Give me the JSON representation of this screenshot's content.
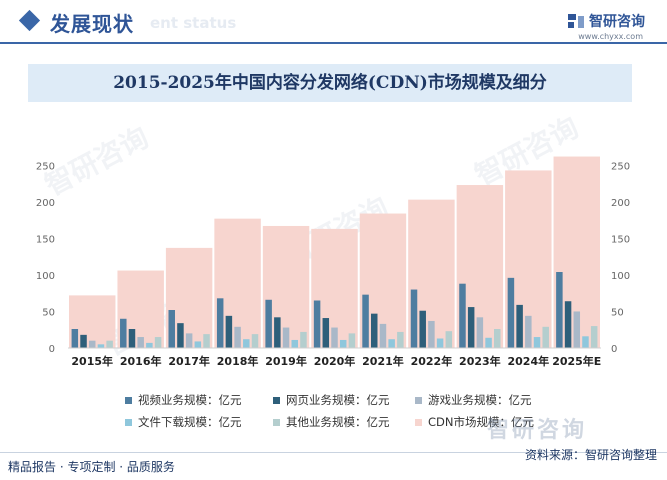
{
  "header": {
    "section_title": "发展现状",
    "section_subtitle": "ent status",
    "brand_name": "智研咨询",
    "brand_url": "www.chyxx.com"
  },
  "watermark": {
    "text": "智研咨询",
    "corner_text": "智研咨询"
  },
  "footer": {
    "left": "精品报告 · 专项定制 · 品质服务",
    "right": "资料来源：智研咨询整理"
  },
  "chart_data": {
    "type": "bar",
    "title": "2015-2025年中国内容分发网络(CDN)市场规模及细分",
    "categories": [
      "2015年",
      "2016年",
      "2017年",
      "2018年",
      "2019年",
      "2020年",
      "2021年",
      "2022年",
      "2023年",
      "2024年",
      "2025年E"
    ],
    "series": [
      {
        "name": "视频业务规模：亿元",
        "color": "#4e7da0",
        "values": [
          26,
          40,
          52,
          68,
          66,
          65,
          73,
          80,
          88,
          96,
          104
        ]
      },
      {
        "name": "网页业务规模：亿元",
        "color": "#2e5f7a",
        "values": [
          18,
          26,
          34,
          44,
          42,
          41,
          47,
          51,
          56,
          59,
          64
        ]
      },
      {
        "name": "游戏业务规模：亿元",
        "color": "#a9b8c8",
        "values": [
          10,
          15,
          20,
          29,
          28,
          28,
          33,
          37,
          42,
          44,
          50
        ]
      },
      {
        "name": "文件下载规模：亿元",
        "color": "#8fc7dc",
        "values": [
          5,
          7,
          9,
          12,
          11,
          11,
          12,
          13,
          14,
          15,
          16
        ]
      },
      {
        "name": "其他业务规模：亿元",
        "color": "#b4cece",
        "values": [
          10,
          15,
          19,
          19,
          22,
          20,
          22,
          23,
          26,
          29,
          30
        ]
      },
      {
        "name": "CDN市场规模：亿元",
        "color": "#f7d5cf",
        "values": [
          72,
          106,
          137,
          177,
          167,
          163,
          184,
          203,
          223,
          243,
          262
        ]
      }
    ],
    "ylim": [
      0,
      260
    ],
    "yticks": [
      0,
      50,
      100,
      150,
      200,
      250
    ]
  }
}
